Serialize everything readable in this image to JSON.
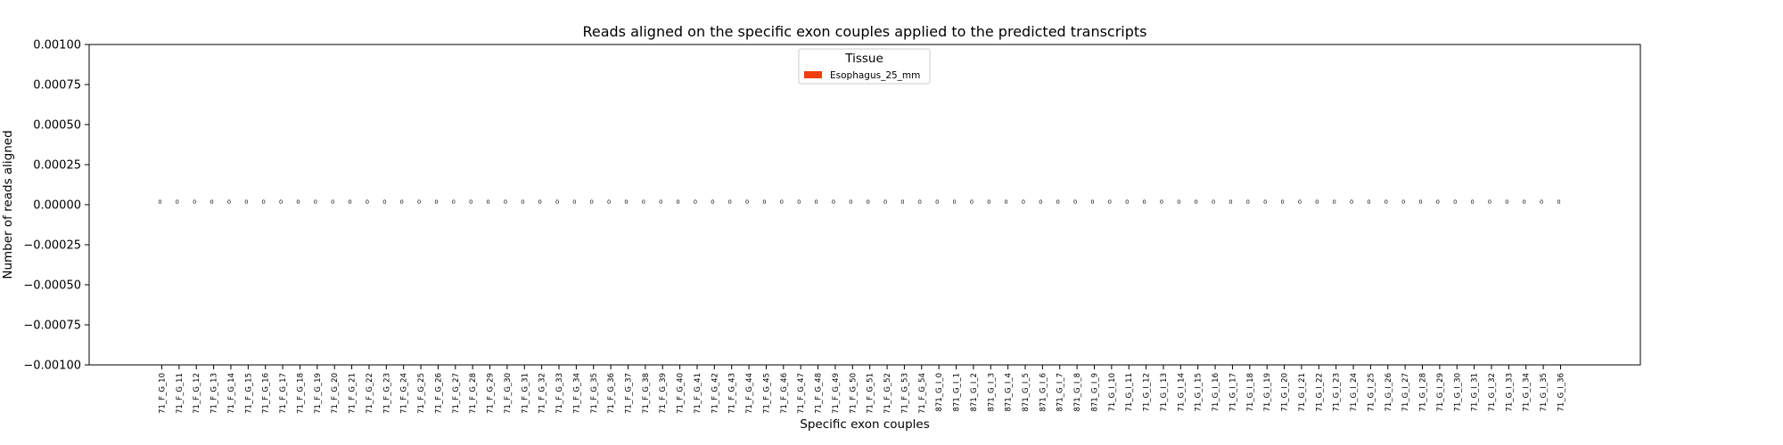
{
  "chart_data": {
    "type": "bar",
    "title": "Reads aligned on the specific exon couples applied to the predicted transcripts",
    "xlabel": "Specific exon couples",
    "ylabel": "Number of reads aligned",
    "ylim": [
      -0.001,
      0.001
    ],
    "yticks": [
      0.001,
      0.00075,
      0.0005,
      0.00025,
      0.0,
      -0.00025,
      -0.0005,
      -0.00075,
      -0.001
    ],
    "ytick_labels": [
      "0.00100",
      "0.00075",
      "0.00050",
      "0.00025",
      "0.00000",
      "−0.00025",
      "−0.00050",
      "−0.00075",
      "−0.00100"
    ],
    "grid": false,
    "legend": {
      "title": "Tissue",
      "placement": "upper-center",
      "entries": [
        {
          "label": "Esophagus_25_mm",
          "color": "#f03c0f"
        }
      ]
    },
    "categories": [
      "71_F_G_10",
      "71_F_G_11",
      "71_F_G_12",
      "71_F_G_13",
      "71_F_G_14",
      "71_F_G_15",
      "71_F_G_16",
      "71_F_G_17",
      "71_F_G_18",
      "71_F_G_19",
      "71_F_G_20",
      "71_F_G_21",
      "71_F_G_22",
      "71_F_G_23",
      "71_F_G_24",
      "71_F_G_25",
      "71_F_G_26",
      "71_F_G_27",
      "71_F_G_28",
      "71_F_G_29",
      "71_F_G_30",
      "71_F_G_31",
      "71_F_G_32",
      "71_F_G_33",
      "71_F_G_34",
      "71_F_G_35",
      "71_F_G_36",
      "71_F_G_37",
      "71_F_G_38",
      "71_F_G_39",
      "71_F_G_40",
      "71_F_G_41",
      "71_F_G_42",
      "71_F_G_43",
      "71_F_G_44",
      "71_F_G_45",
      "71_F_G_46",
      "71_F_G_47",
      "71_F_G_48",
      "71_F_G_49",
      "71_F_G_50",
      "71_F_G_51",
      "71_F_G_52",
      "71_F_G_53",
      "71_F_G_54",
      "871_G_I_0",
      "871_G_I_1",
      "871_G_I_2",
      "871_G_I_3",
      "871_G_I_4",
      "871_G_I_5",
      "871_G_I_6",
      "871_G_I_7",
      "871_G_I_8",
      "871_G_I_9",
      "71_G_I_10",
      "71_G_I_11",
      "71_G_I_12",
      "71_G_I_13",
      "71_G_I_14",
      "71_G_I_15",
      "71_G_I_16",
      "71_G_I_17",
      "71_G_I_18",
      "71_G_I_19",
      "71_G_I_20",
      "71_G_I_21",
      "71_G_I_22",
      "71_G_I_23",
      "71_G_I_24",
      "71_G_I_25",
      "71_G_I_26",
      "71_G_I_27",
      "71_G_I_28",
      "71_G_I_29",
      "71_G_I_30",
      "71_G_I_31",
      "71_G_I_32",
      "71_G_I_33",
      "71_G_I_34",
      "71_G_I_35",
      "71_G_I_36"
    ],
    "series": [
      {
        "name": "Esophagus_25_mm",
        "color": "#f03c0f",
        "values": [
          0,
          0,
          0,
          0,
          0,
          0,
          0,
          0,
          0,
          0,
          0,
          0,
          0,
          0,
          0,
          0,
          0,
          0,
          0,
          0,
          0,
          0,
          0,
          0,
          0,
          0,
          0,
          0,
          0,
          0,
          0,
          0,
          0,
          0,
          0,
          0,
          0,
          0,
          0,
          0,
          0,
          0,
          0,
          0,
          0,
          0,
          0,
          0,
          0,
          0,
          0,
          0,
          0,
          0,
          0,
          0,
          0,
          0,
          0,
          0,
          0,
          0,
          0,
          0,
          0,
          0,
          0,
          0,
          0,
          0,
          0,
          0,
          0,
          0,
          0,
          0,
          0,
          0,
          0,
          0,
          0,
          0
        ],
        "data_labels": [
          "0",
          "0",
          "0",
          "0",
          "0",
          "0",
          "0",
          "0",
          "0",
          "0",
          "0",
          "0",
          "0",
          "0",
          "0",
          "0",
          "0",
          "0",
          "0",
          "0",
          "0",
          "0",
          "0",
          "0",
          "0",
          "0",
          "0",
          "0",
          "0",
          "0",
          "0",
          "0",
          "0",
          "0",
          "0",
          "0",
          "0",
          "0",
          "0",
          "0",
          "0",
          "0",
          "0",
          "0",
          "0",
          "0",
          "0",
          "0",
          "0",
          "0",
          "0",
          "0",
          "0",
          "0",
          "0",
          "0",
          "0",
          "0",
          "0",
          "0",
          "0",
          "0",
          "0",
          "0",
          "0",
          "0",
          "0",
          "0",
          "0",
          "0",
          "0",
          "0",
          "0",
          "0",
          "0",
          "0",
          "0",
          "0",
          "0",
          "0",
          "0",
          "0"
        ]
      }
    ]
  }
}
